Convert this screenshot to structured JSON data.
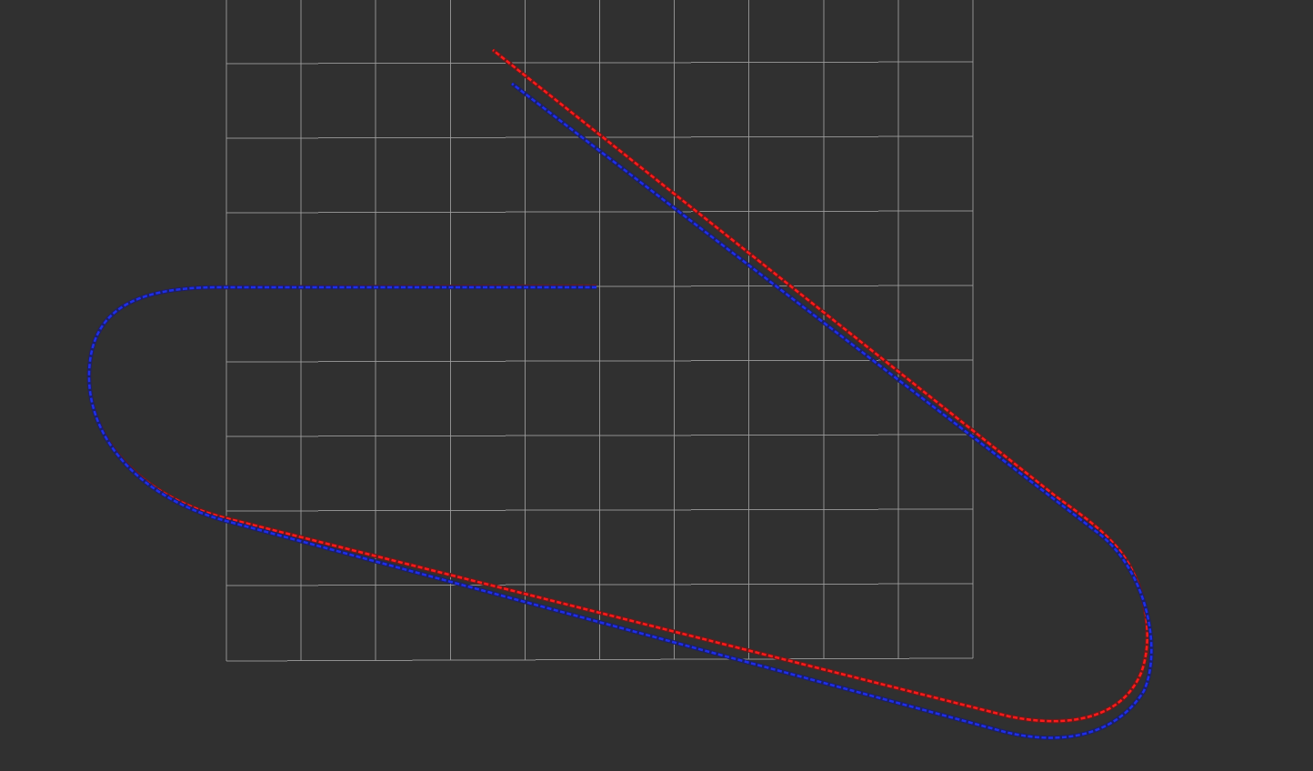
{
  "scene": {
    "background_color": "#303030",
    "grid": {
      "visible": true,
      "color": "#a0a0a0",
      "cells_x": 10,
      "cells_y": 9
    },
    "paths": [
      {
        "id": "red-path",
        "color": "#ff1a1a",
        "shadow_color": "#6a1a1a"
      },
      {
        "id": "blue-path",
        "color": "#1f2ee8",
        "shadow_color": "#1a1f6a"
      }
    ]
  }
}
